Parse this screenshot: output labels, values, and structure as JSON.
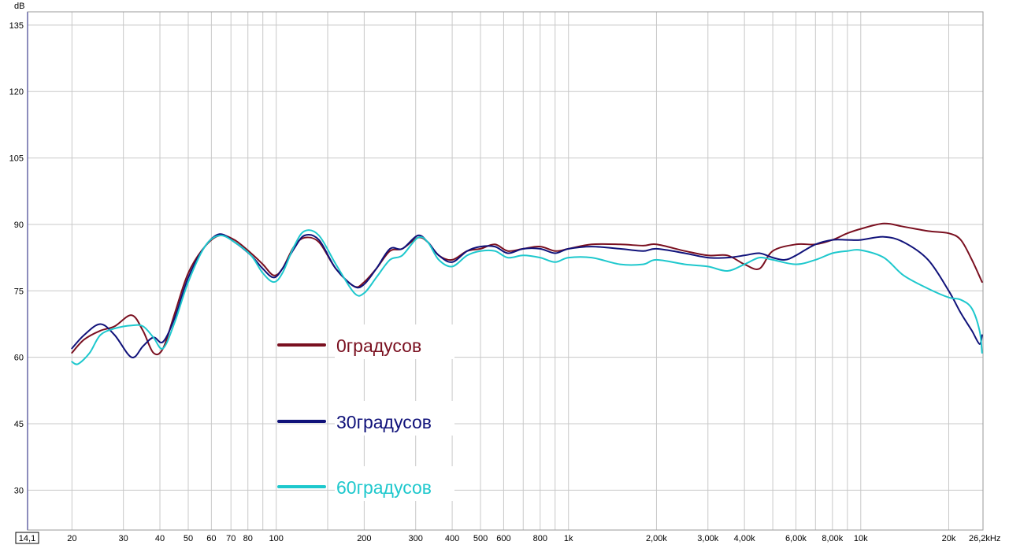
{
  "chart_data": {
    "type": "line",
    "xscale": "log",
    "xlim": [
      14.1,
      26200
    ],
    "ylim": [
      21,
      138
    ],
    "grid": true,
    "y_unit": "dB",
    "x_unit_suffix": "26,2kHz",
    "x_start_label": "14,1",
    "y_ticks": [
      30,
      45,
      60,
      75,
      90,
      105,
      120,
      135
    ],
    "x_ticks": [
      {
        "value": 20,
        "label": "20"
      },
      {
        "value": 30,
        "label": "30"
      },
      {
        "value": 40,
        "label": "40"
      },
      {
        "value": 50,
        "label": "50"
      },
      {
        "value": 60,
        "label": "60"
      },
      {
        "value": 70,
        "label": "70"
      },
      {
        "value": 80,
        "label": "80"
      },
      {
        "value": 100,
        "label": "100"
      },
      {
        "value": 200,
        "label": "200"
      },
      {
        "value": 300,
        "label": "300"
      },
      {
        "value": 400,
        "label": "400"
      },
      {
        "value": 500,
        "label": "500"
      },
      {
        "value": 600,
        "label": "600"
      },
      {
        "value": 800,
        "label": "800"
      },
      {
        "value": 1000,
        "label": "1k"
      },
      {
        "value": 2000,
        "label": "2,00k"
      },
      {
        "value": 3000,
        "label": "3,00k"
      },
      {
        "value": 4000,
        "label": "4,00k"
      },
      {
        "value": 6000,
        "label": "6,00k"
      },
      {
        "value": 8000,
        "label": "8,00k"
      },
      {
        "value": 10000,
        "label": "10k"
      },
      {
        "value": 20000,
        "label": "20k"
      }
    ],
    "x_grid": [
      20,
      30,
      40,
      50,
      60,
      70,
      80,
      90,
      100,
      150,
      200,
      300,
      400,
      500,
      600,
      700,
      800,
      900,
      1000,
      2000,
      3000,
      4000,
      5000,
      6000,
      7000,
      8000,
      9000,
      10000,
      20000
    ],
    "legend_position": "inside-left",
    "series": [
      {
        "name": "0градусов",
        "color": "#7a1020",
        "points": [
          [
            20,
            61
          ],
          [
            22,
            64
          ],
          [
            25,
            66
          ],
          [
            28,
            67
          ],
          [
            32,
            69.5
          ],
          [
            35,
            66
          ],
          [
            38,
            61
          ],
          [
            41,
            62
          ],
          [
            45,
            70
          ],
          [
            50,
            79
          ],
          [
            57,
            85
          ],
          [
            64,
            87.5
          ],
          [
            72,
            86.5
          ],
          [
            82,
            83.5
          ],
          [
            90,
            81
          ],
          [
            98,
            78.5
          ],
          [
            105,
            80
          ],
          [
            115,
            85
          ],
          [
            125,
            87
          ],
          [
            140,
            86
          ],
          [
            160,
            80
          ],
          [
            185,
            76
          ],
          [
            200,
            77
          ],
          [
            220,
            80
          ],
          [
            245,
            84
          ],
          [
            270,
            84.5
          ],
          [
            305,
            87
          ],
          [
            330,
            86
          ],
          [
            360,
            83
          ],
          [
            400,
            82
          ],
          [
            450,
            84
          ],
          [
            500,
            84.5
          ],
          [
            560,
            85.5
          ],
          [
            620,
            84
          ],
          [
            700,
            84.5
          ],
          [
            800,
            85
          ],
          [
            900,
            84
          ],
          [
            1000,
            84.5
          ],
          [
            1200,
            85.5
          ],
          [
            1500,
            85.5
          ],
          [
            1800,
            85.2
          ],
          [
            2000,
            85.5
          ],
          [
            2500,
            84
          ],
          [
            3000,
            83
          ],
          [
            3500,
            83
          ],
          [
            4000,
            81
          ],
          [
            4500,
            80
          ],
          [
            5000,
            84
          ],
          [
            6000,
            85.5
          ],
          [
            7000,
            85.5
          ],
          [
            8000,
            86.5
          ],
          [
            9000,
            88
          ],
          [
            10000,
            89
          ],
          [
            12000,
            90.2
          ],
          [
            14000,
            89.5
          ],
          [
            17000,
            88.5
          ],
          [
            20000,
            88
          ],
          [
            22000,
            86.5
          ],
          [
            24000,
            82
          ],
          [
            26000,
            77
          ]
        ]
      },
      {
        "name": "30градусов",
        "color": "#10127a",
        "points": [
          [
            20,
            62
          ],
          [
            22,
            65
          ],
          [
            25,
            67.5
          ],
          [
            28,
            65
          ],
          [
            32,
            60
          ],
          [
            35,
            62.5
          ],
          [
            38,
            64.5
          ],
          [
            41,
            63.5
          ],
          [
            45,
            69
          ],
          [
            50,
            78
          ],
          [
            57,
            85
          ],
          [
            64,
            87.8
          ],
          [
            72,
            86
          ],
          [
            82,
            83
          ],
          [
            90,
            80
          ],
          [
            98,
            78
          ],
          [
            105,
            80
          ],
          [
            115,
            84.5
          ],
          [
            125,
            87.5
          ],
          [
            140,
            86.5
          ],
          [
            160,
            80
          ],
          [
            185,
            76
          ],
          [
            200,
            76.5
          ],
          [
            220,
            80
          ],
          [
            245,
            84.5
          ],
          [
            270,
            84.5
          ],
          [
            305,
            87.5
          ],
          [
            330,
            86
          ],
          [
            360,
            83
          ],
          [
            400,
            81.5
          ],
          [
            450,
            84
          ],
          [
            500,
            85
          ],
          [
            560,
            85
          ],
          [
            620,
            83.5
          ],
          [
            700,
            84.5
          ],
          [
            800,
            84.5
          ],
          [
            900,
            83.5
          ],
          [
            1000,
            84.5
          ],
          [
            1200,
            85
          ],
          [
            1500,
            84.5
          ],
          [
            1800,
            84
          ],
          [
            2000,
            84.5
          ],
          [
            2500,
            83.5
          ],
          [
            3000,
            82.5
          ],
          [
            3500,
            82.5
          ],
          [
            4000,
            83
          ],
          [
            4500,
            83.5
          ],
          [
            5000,
            82.5
          ],
          [
            5500,
            82
          ],
          [
            6000,
            83
          ],
          [
            7000,
            85.5
          ],
          [
            8000,
            86.5
          ],
          [
            9000,
            86.5
          ],
          [
            10000,
            86.5
          ],
          [
            12000,
            87.2
          ],
          [
            14000,
            86
          ],
          [
            17000,
            82
          ],
          [
            20000,
            75
          ],
          [
            22000,
            70
          ],
          [
            24000,
            66
          ],
          [
            25500,
            63
          ],
          [
            26000,
            65
          ]
        ]
      },
      {
        "name": "60градусов",
        "color": "#1ec8cd",
        "points": [
          [
            20,
            59
          ],
          [
            21,
            58.5
          ],
          [
            23,
            61
          ],
          [
            25,
            65
          ],
          [
            28,
            66.5
          ],
          [
            32,
            67.2
          ],
          [
            35,
            67
          ],
          [
            38,
            64.5
          ],
          [
            41,
            62
          ],
          [
            45,
            68
          ],
          [
            50,
            77
          ],
          [
            57,
            85
          ],
          [
            64,
            87.5
          ],
          [
            72,
            86
          ],
          [
            82,
            83
          ],
          [
            90,
            79
          ],
          [
            98,
            77
          ],
          [
            105,
            79
          ],
          [
            115,
            85
          ],
          [
            125,
            88.5
          ],
          [
            140,
            87.5
          ],
          [
            160,
            81
          ],
          [
            185,
            74.5
          ],
          [
            200,
            74.5
          ],
          [
            220,
            78
          ],
          [
            245,
            82
          ],
          [
            270,
            83
          ],
          [
            305,
            87
          ],
          [
            330,
            86
          ],
          [
            360,
            82
          ],
          [
            400,
            80.5
          ],
          [
            450,
            83
          ],
          [
            500,
            84
          ],
          [
            560,
            84
          ],
          [
            620,
            82.5
          ],
          [
            700,
            83
          ],
          [
            800,
            82.5
          ],
          [
            900,
            81.5
          ],
          [
            1000,
            82.5
          ],
          [
            1200,
            82.5
          ],
          [
            1500,
            81
          ],
          [
            1800,
            81
          ],
          [
            2000,
            82
          ],
          [
            2500,
            81
          ],
          [
            3000,
            80.5
          ],
          [
            3500,
            79.5
          ],
          [
            4000,
            81
          ],
          [
            4500,
            82.5
          ],
          [
            5000,
            82
          ],
          [
            6000,
            81
          ],
          [
            7000,
            82
          ],
          [
            8000,
            83.5
          ],
          [
            9000,
            84
          ],
          [
            10000,
            84.2
          ],
          [
            12000,
            82.5
          ],
          [
            14000,
            78.5
          ],
          [
            17000,
            75.5
          ],
          [
            20000,
            73.5
          ],
          [
            22000,
            73
          ],
          [
            24000,
            71
          ],
          [
            25500,
            66
          ],
          [
            26000,
            61
          ]
        ]
      }
    ]
  }
}
